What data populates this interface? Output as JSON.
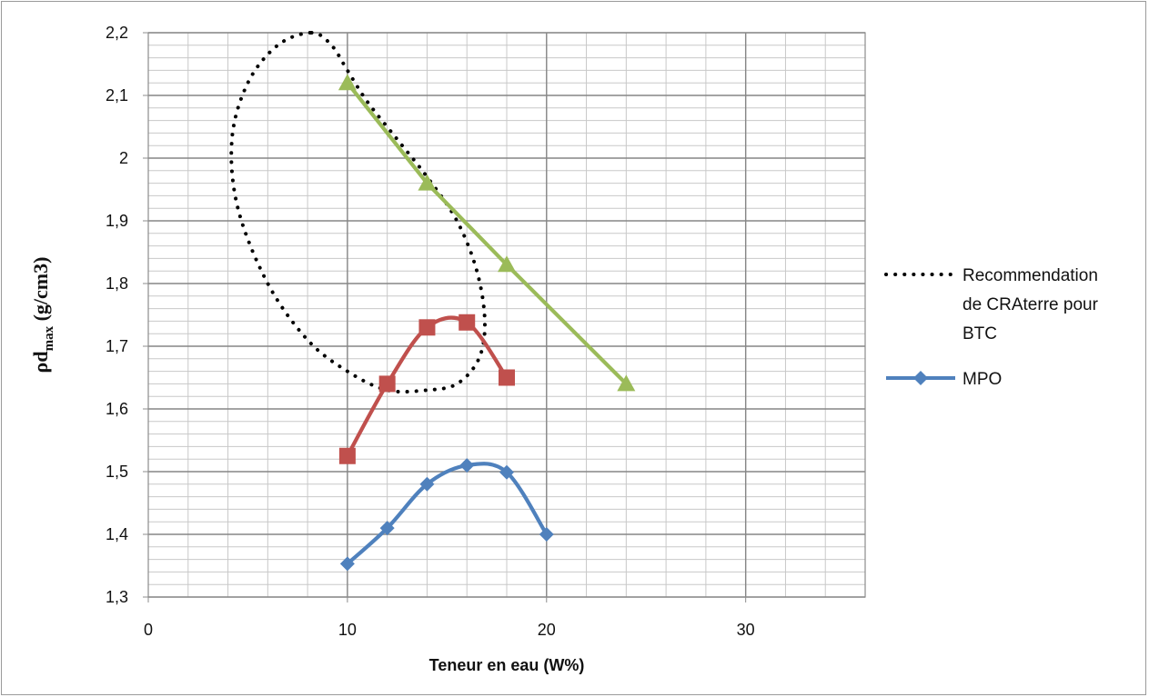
{
  "chart_data": {
    "type": "line",
    "xlabel": "Teneur en eau (W%)",
    "ylabel": {
      "base": "ρd",
      "subscript": "max",
      "unit": " (g/cm3)"
    },
    "xlim": [
      0,
      36
    ],
    "ylim": [
      1.3,
      2.2
    ],
    "xticks": [
      0,
      10,
      20,
      30
    ],
    "yticks": [
      1.3,
      1.4,
      1.5,
      1.6,
      1.7,
      1.8,
      1.9,
      2.0,
      2.1,
      2.2
    ],
    "ytick_labels": [
      "1,3",
      "1,4",
      "1,5",
      "1,6",
      "1,7",
      "1,8",
      "1,9",
      "2",
      "2,1",
      "2,2"
    ],
    "grid": {
      "major": true,
      "minor": true,
      "x_minor_step": 2,
      "y_minor_step": 0.02
    },
    "legend_position": "right",
    "series": [
      {
        "name": "Recommendation de CRAterre pour BTC",
        "legend_lines": [
          "Recommendation",
          "de CRAterre pour",
          "BTC"
        ],
        "style": "dotted",
        "color": "#000000",
        "marker": "none",
        "closed": true,
        "x": [
          8.2,
          9.2,
          10.0,
          11.0,
          12.5,
          14.0,
          15.5,
          16.5,
          16.9,
          16.6,
          15.5,
          14.0,
          12.0,
          10.0,
          8.0,
          6.0,
          4.5,
          4.2,
          5.0,
          6.5
        ],
        "y": [
          2.2,
          2.18,
          2.14,
          2.09,
          2.03,
          1.97,
          1.9,
          1.82,
          1.74,
          1.68,
          1.64,
          1.63,
          1.63,
          1.66,
          1.71,
          1.8,
          1.92,
          2.03,
          2.12,
          2.18
        ]
      },
      {
        "name": "",
        "style": "solid",
        "color": "#9bbb59",
        "marker": "triangle",
        "x": [
          10,
          14,
          18,
          24
        ],
        "y": [
          2.12,
          1.96,
          1.83,
          1.64
        ]
      },
      {
        "name": "",
        "style": "solid",
        "color": "#c0504d",
        "marker": "square",
        "x": [
          10,
          12,
          14,
          16,
          18
        ],
        "y": [
          1.525,
          1.64,
          1.73,
          1.738,
          1.65
        ]
      },
      {
        "name": "MPO",
        "style": "solid",
        "color": "#4f81bd",
        "marker": "diamond",
        "x": [
          10,
          12,
          14,
          16,
          18,
          20
        ],
        "y": [
          1.353,
          1.41,
          1.48,
          1.51,
          1.499,
          1.4
        ]
      }
    ]
  }
}
